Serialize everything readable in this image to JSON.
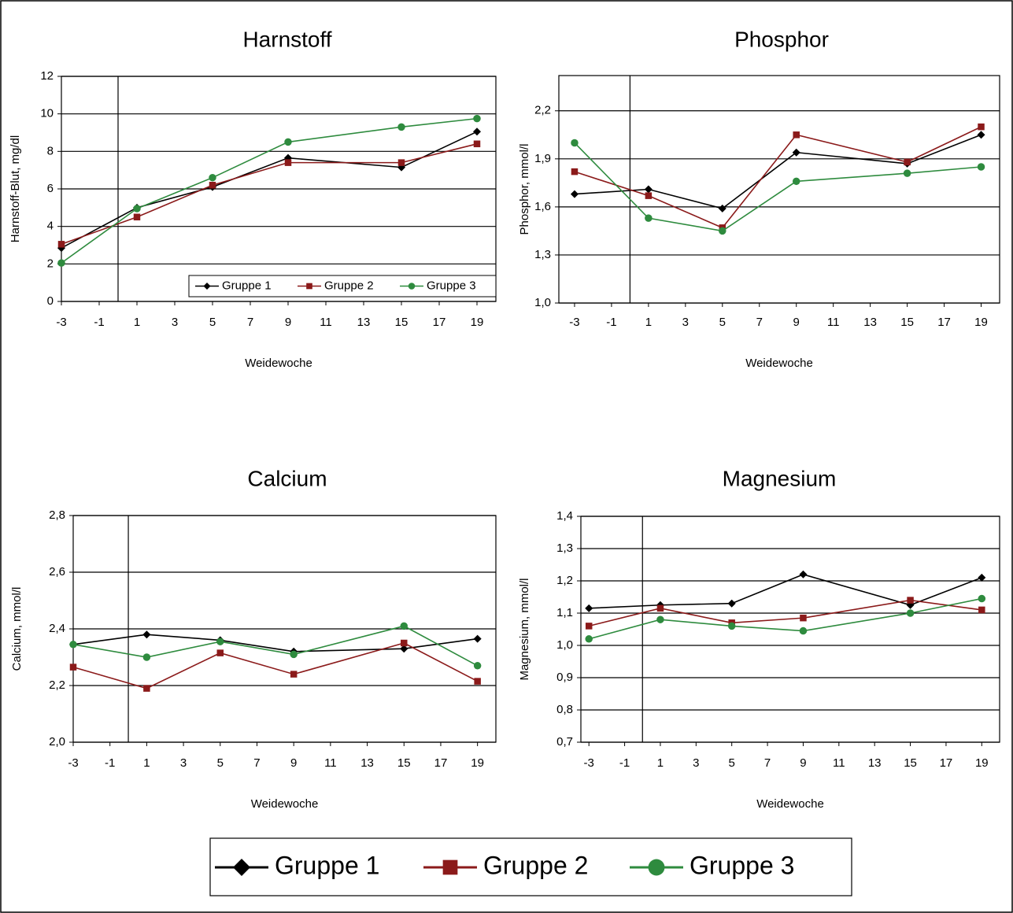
{
  "chart_data": [
    {
      "type": "line",
      "title": "Harnstoff",
      "y_label": "Harnstoff-Blut, mg/dl",
      "x_label": "Weidewoche",
      "x": [
        -3,
        1,
        5,
        9,
        15,
        19
      ],
      "xlim": [
        -3,
        20
      ],
      "xticks": [
        -3,
        -1,
        1,
        3,
        5,
        7,
        9,
        11,
        13,
        15,
        17,
        19
      ],
      "ylim": [
        0,
        12
      ],
      "yticks": [
        0,
        2,
        4,
        6,
        8,
        10,
        12
      ],
      "grid": true,
      "vline": 0,
      "legend": "lower right",
      "series": [
        {
          "name": "Gruppe 1",
          "color": "#000000",
          "marker": "diamond",
          "values": [
            2.85,
            5.0,
            6.1,
            7.65,
            7.15,
            9.05
          ]
        },
        {
          "name": "Gruppe 2",
          "color": "#8b1a1a",
          "marker": "square",
          "values": [
            3.05,
            4.5,
            6.2,
            7.4,
            7.4,
            8.4
          ]
        },
        {
          "name": "Gruppe 3",
          "color": "#2e8b3e",
          "marker": "circle",
          "values": [
            2.05,
            4.95,
            6.6,
            8.5,
            9.3,
            9.75
          ]
        }
      ]
    },
    {
      "type": "line",
      "title": "Phosphor",
      "y_label": "Phosphor, mmol/l",
      "x_label": "Weidewoche",
      "x": [
        -3,
        1,
        5,
        9,
        15,
        19
      ],
      "xlim": [
        -3.85,
        20
      ],
      "xticks": [
        -3,
        -1,
        1,
        3,
        5,
        7,
        9,
        11,
        13,
        15,
        17,
        19
      ],
      "ylim": [
        1.0,
        2.42
      ],
      "yticks": [
        {
          "value": 1.0,
          "label": "1,0"
        },
        {
          "value": 1.3,
          "label": "1,3"
        },
        {
          "value": 1.6,
          "label": "1,6"
        },
        {
          "value": 1.9,
          "label": "1,9"
        },
        {
          "value": 2.2,
          "label": "2,2"
        }
      ],
      "grid": true,
      "vline": 0,
      "series": [
        {
          "name": "Gruppe 1",
          "color": "#000000",
          "marker": "diamond",
          "values": [
            1.68,
            1.71,
            1.59,
            1.94,
            1.87,
            2.05
          ]
        },
        {
          "name": "Gruppe 2",
          "color": "#8b1a1a",
          "marker": "square",
          "values": [
            1.82,
            1.67,
            1.47,
            2.05,
            1.88,
            2.1
          ]
        },
        {
          "name": "Gruppe 3",
          "color": "#2e8b3e",
          "marker": "circle",
          "values": [
            2.0,
            1.53,
            1.45,
            1.76,
            1.81,
            1.85
          ]
        }
      ]
    },
    {
      "type": "line",
      "title": "Calcium",
      "y_label": "Calcium, mmol/l",
      "x_label": "Weidewoche",
      "x": [
        -3,
        1,
        5,
        9,
        15,
        19
      ],
      "xlim": [
        -3,
        20
      ],
      "xticks": [
        -3,
        -1,
        1,
        3,
        5,
        7,
        9,
        11,
        13,
        15,
        17,
        19
      ],
      "ylim": [
        2.0,
        2.8
      ],
      "yticks": [
        {
          "value": 2.0,
          "label": "2,0"
        },
        {
          "value": 2.2,
          "label": "2,2"
        },
        {
          "value": 2.4,
          "label": "2,4"
        },
        {
          "value": 2.6,
          "label": "2,6"
        },
        {
          "value": 2.8,
          "label": "2,8"
        }
      ],
      "grid": true,
      "vline": 0,
      "series": [
        {
          "name": "Gruppe 1",
          "color": "#000000",
          "marker": "diamond",
          "values": [
            2.345,
            2.38,
            2.36,
            2.32,
            2.33,
            2.365
          ]
        },
        {
          "name": "Gruppe 2",
          "color": "#8b1a1a",
          "marker": "square",
          "values": [
            2.265,
            2.19,
            2.315,
            2.24,
            2.35,
            2.215
          ]
        },
        {
          "name": "Gruppe 3",
          "color": "#2e8b3e",
          "marker": "circle",
          "values": [
            2.345,
            2.3,
            2.355,
            2.31,
            2.41,
            2.27
          ]
        }
      ]
    },
    {
      "type": "line",
      "title": "Magnesium",
      "y_label": "Magnesium, mmol/l",
      "x_label": "Weidewoche",
      "x": [
        -3,
        1,
        5,
        9,
        15,
        19
      ],
      "xlim": [
        -3.45,
        20
      ],
      "xticks": [
        -3,
        -1,
        1,
        3,
        5,
        7,
        9,
        11,
        13,
        15,
        17,
        19
      ],
      "ylim": [
        0.7,
        1.4
      ],
      "yticks": [
        {
          "value": 0.7,
          "label": "0,7"
        },
        {
          "value": 0.8,
          "label": "0,8"
        },
        {
          "value": 0.9,
          "label": "0,9"
        },
        {
          "value": 1.0,
          "label": "1,0"
        },
        {
          "value": 1.1,
          "label": "1,1"
        },
        {
          "value": 1.2,
          "label": "1,2"
        },
        {
          "value": 1.3,
          "label": "1,3"
        },
        {
          "value": 1.4,
          "label": "1,4"
        }
      ],
      "grid": true,
      "vline": 0,
      "series": [
        {
          "name": "Gruppe 1",
          "color": "#000000",
          "marker": "diamond",
          "values": [
            1.115,
            1.125,
            1.13,
            1.22,
            1.125,
            1.21
          ]
        },
        {
          "name": "Gruppe 2",
          "color": "#8b1a1a",
          "marker": "square",
          "values": [
            1.06,
            1.115,
            1.07,
            1.085,
            1.14,
            1.11
          ]
        },
        {
          "name": "Gruppe 3",
          "color": "#2e8b3e",
          "marker": "circle",
          "values": [
            1.02,
            1.08,
            1.06,
            1.045,
            1.1,
            1.145
          ]
        }
      ]
    }
  ]
}
